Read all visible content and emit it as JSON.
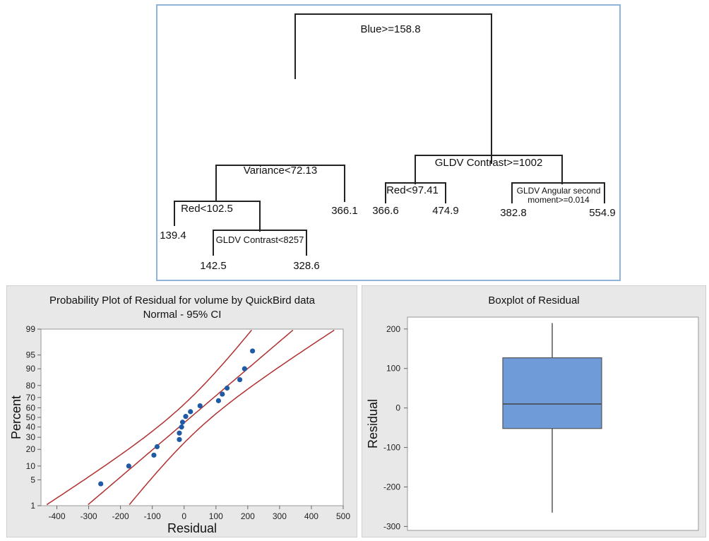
{
  "tree": {
    "root": "Blue>=158.8",
    "left_split": "Variance<72.13",
    "right_split": "GLDV Contrast>=1002",
    "red_split_left": "Red<102.5",
    "red_split_right": "Red<97.41",
    "contrast_split": "GLDV Contrast<8257",
    "angular_split_line1": "GLDV Angular second",
    "angular_split_line2": "moment>=0.014",
    "leaves": {
      "l1": "139.4",
      "l2": "142.5",
      "l3": "328.6",
      "l4": "366.1",
      "l5": "366.6",
      "l6": "474.9",
      "l7": "382.8",
      "l8": "554.9"
    }
  },
  "colors": {
    "frame": "#8fb3d9",
    "panel_bg": "#e8e8e8",
    "ci_line": "#b03030",
    "point": "#1f5aa6",
    "box_fill": "#6f9bd8"
  },
  "chart_data": [
    {
      "type": "scatter",
      "title": "Probability Plot of Residual for volume by QuickBird data",
      "subtitle": "Normal - 95% CI",
      "xlabel": "Residual",
      "ylabel": "Percent",
      "xlim": [
        -450,
        500
      ],
      "xticks": [
        -400,
        -300,
        -200,
        -100,
        0,
        100,
        200,
        300,
        400,
        500
      ],
      "yticks": [
        1,
        5,
        10,
        20,
        30,
        40,
        50,
        60,
        70,
        80,
        90,
        95,
        99
      ],
      "yscale": "normal probability",
      "points": [
        {
          "x": -262,
          "y": 4
        },
        {
          "x": -174,
          "y": 10
        },
        {
          "x": -95,
          "y": 16
        },
        {
          "x": -85,
          "y": 22
        },
        {
          "x": -15,
          "y": 28
        },
        {
          "x": -15,
          "y": 34
        },
        {
          "x": -8,
          "y": 40
        },
        {
          "x": -5,
          "y": 45
        },
        {
          "x": 5,
          "y": 51
        },
        {
          "x": 20,
          "y": 56
        },
        {
          "x": 50,
          "y": 62
        },
        {
          "x": 108,
          "y": 67
        },
        {
          "x": 120,
          "y": 73
        },
        {
          "x": 135,
          "y": 78
        },
        {
          "x": 175,
          "y": 84
        },
        {
          "x": 190,
          "y": 90
        },
        {
          "x": 215,
          "y": 96
        }
      ],
      "fit": {
        "mean": 20,
        "sd": 140
      },
      "grid": false
    },
    {
      "type": "box",
      "title": "Boxplot of Residual",
      "ylabel": "Residual",
      "ylim": [
        -310,
        230
      ],
      "yticks": [
        -300,
        -200,
        -100,
        0,
        100,
        200
      ],
      "whisker_low": -265,
      "q1": -52,
      "median": 10,
      "q3": 127,
      "whisker_high": 215
    }
  ]
}
